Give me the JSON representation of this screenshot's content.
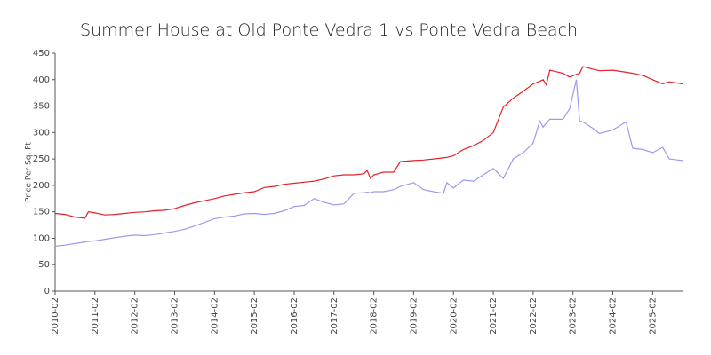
{
  "chart_data": {
    "type": "line",
    "title": "Summer House at Old Ponte Vedra 1 vs Ponte Vedra Beach",
    "y_label": "Price Per Sq. Ft",
    "x": [
      "2010-02",
      "2010-05",
      "2010-08",
      "2010-11",
      "2010-12",
      "2011-02",
      "2011-05",
      "2011-08",
      "2011-11",
      "2012-02",
      "2012-05",
      "2012-08",
      "2012-11",
      "2013-02",
      "2013-05",
      "2013-08",
      "2013-11",
      "2014-02",
      "2014-05",
      "2014-08",
      "2014-11",
      "2015-02",
      "2015-05",
      "2015-08",
      "2015-11",
      "2016-02",
      "2016-05",
      "2016-08",
      "2016-11",
      "2017-02",
      "2017-05",
      "2017-08",
      "2017-11",
      "2017-12",
      "2018-01",
      "2018-02",
      "2018-05",
      "2018-08",
      "2018-10",
      "2019-02",
      "2019-05",
      "2019-08",
      "2019-11",
      "2019-12",
      "2020-02",
      "2020-05",
      "2020-08",
      "2020-11",
      "2021-02",
      "2021-05",
      "2021-08",
      "2021-11",
      "2022-02",
      "2022-04",
      "2022-05",
      "2022-06",
      "2022-07",
      "2022-11",
      "2023-01",
      "2023-03",
      "2023-04",
      "2023-05",
      "2023-08",
      "2023-10",
      "2024-02",
      "2024-06",
      "2024-08",
      "2024-11",
      "2025-02",
      "2025-05",
      "2025-07",
      "2025-11"
    ],
    "series": [
      {
        "color": "#e4202a",
        "values": [
          147,
          145,
          140,
          138,
          150,
          148,
          144,
          145,
          147,
          149,
          150,
          152,
          153,
          156,
          162,
          167,
          171,
          175,
          180,
          183,
          186,
          188,
          196,
          198,
          202,
          204,
          206,
          208,
          212,
          218,
          220,
          220,
          222,
          228,
          213,
          220,
          225,
          225,
          245,
          247,
          248,
          250,
          252,
          253,
          256,
          268,
          275,
          285,
          300,
          348,
          365,
          378,
          392,
          397,
          400,
          390,
          418,
          412,
          405,
          410,
          412,
          425,
          420,
          417,
          418,
          414,
          412,
          408,
          400,
          392,
          396,
          392
        ]
      },
      {
        "color": "#9a9af0",
        "values": [
          85,
          87,
          90,
          93,
          94,
          95,
          98,
          101,
          104,
          106,
          105,
          107,
          110,
          113,
          117,
          123,
          130,
          137,
          140,
          142,
          146,
          147,
          145,
          147,
          152,
          160,
          162,
          175,
          168,
          163,
          165,
          185,
          186,
          187,
          186,
          188,
          188,
          192,
          198,
          205,
          192,
          188,
          185,
          205,
          195,
          210,
          208,
          220,
          232,
          213,
          250,
          262,
          280,
          322,
          310,
          318,
          325,
          325,
          345,
          400,
          322,
          320,
          308,
          298,
          305,
          320,
          270,
          268,
          262,
          272,
          250,
          247
        ]
      }
    ],
    "xlim": [
      "2010-02",
      "2025-11"
    ],
    "xticks": [
      "2010-02",
      "2011-02",
      "2012-02",
      "2013-02",
      "2014-02",
      "2015-02",
      "2016-02",
      "2017-02",
      "2018-02",
      "2019-02",
      "2020-02",
      "2021-02",
      "2022-02",
      "2023-02",
      "2024-02",
      "2025-02"
    ],
    "ylim": [
      0,
      450
    ],
    "yticks": [
      0,
      50,
      100,
      150,
      200,
      250,
      300,
      350,
      400,
      450
    ],
    "grid": false
  }
}
